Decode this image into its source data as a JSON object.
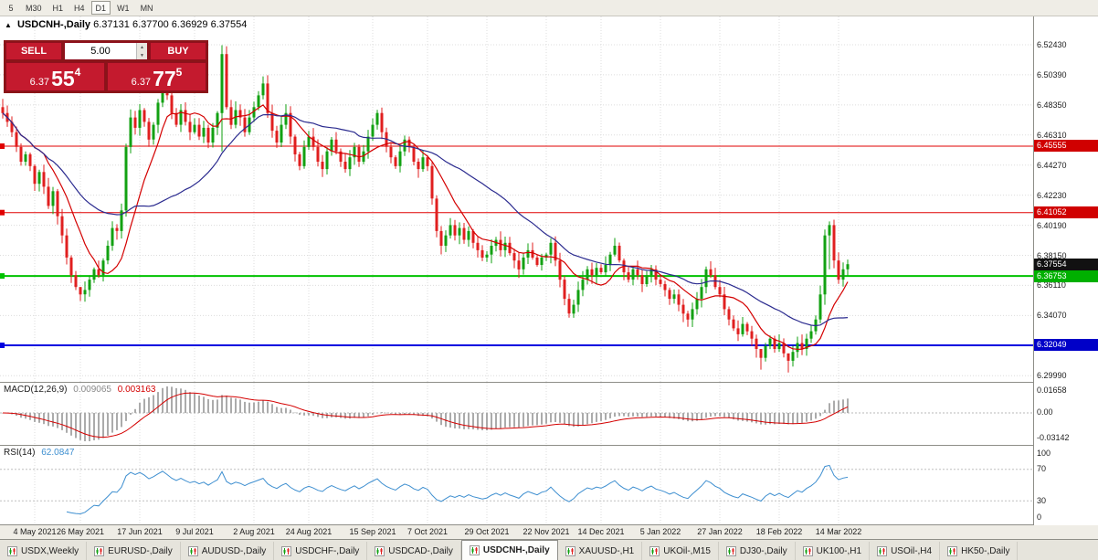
{
  "toolbar": {
    "timeframes": [
      "5",
      "M30",
      "H1",
      "H4",
      "D1",
      "W1",
      "MN"
    ],
    "active_timeframe": "D1"
  },
  "chart": {
    "symbol_label": "USDCNH-,Daily",
    "ohlc": {
      "open": "6.37131",
      "high": "6.37700",
      "low": "6.36929",
      "close": "6.37554"
    },
    "trade_panel": {
      "sell_label": "SELL",
      "buy_label": "BUY",
      "volume": "5.00",
      "sell_price": {
        "prefix": "6.37",
        "big": "55",
        "sup": "4"
      },
      "buy_price": {
        "prefix": "6.37",
        "big": "77",
        "sup": "5"
      }
    }
  },
  "macd": {
    "label": "MACD(12,26,9)",
    "v1": "0.009065",
    "v2": "0.003163",
    "axis": [
      "0.01658",
      "0.00",
      "-0.03142"
    ]
  },
  "rsi": {
    "label": "RSI(14)",
    "value": "62.0847",
    "axis": [
      "100",
      "70",
      "30",
      "0"
    ],
    "levels": [
      70,
      30
    ]
  },
  "tabs": [
    {
      "label": "USDX,Weekly",
      "active": false
    },
    {
      "label": "EURUSD-,Daily",
      "active": false
    },
    {
      "label": "AUDUSD-,Daily",
      "active": false
    },
    {
      "label": "USDCHF-,Daily",
      "active": false
    },
    {
      "label": "USDCAD-,Daily",
      "active": false
    },
    {
      "label": "USDCNH-,Daily",
      "active": true
    },
    {
      "label": "XAUUSD-,H1",
      "active": false
    },
    {
      "label": "UKOil-,M15",
      "active": false
    },
    {
      "label": "DJ30-,Daily",
      "active": false
    },
    {
      "label": "UK100-,H1",
      "active": false
    },
    {
      "label": "USOil-,H4",
      "active": false
    },
    {
      "label": "HK50-,Daily",
      "active": false
    }
  ],
  "chart_data": {
    "type": "candlestick",
    "title": "USDCNH-,Daily",
    "price_range": {
      "top": 6.5435,
      "bottom": 6.2957
    },
    "price_axis_labels": [
      "6.52430",
      "6.50390",
      "6.48350",
      "6.46310",
      "6.44270",
      "6.42230",
      "6.40190",
      "6.38150",
      "6.36110",
      "6.34070",
      "6.32030",
      "6.29990"
    ],
    "x_ticks": [
      {
        "i": 7,
        "label": "4 May 2021"
      },
      {
        "i": 17,
        "label": "26 May 2021"
      },
      {
        "i": 30,
        "label": "17 Jun 2021"
      },
      {
        "i": 42,
        "label": "9 Jul 2021"
      },
      {
        "i": 55,
        "label": "2 Aug 2021"
      },
      {
        "i": 67,
        "label": "24 Aug 2021"
      },
      {
        "i": 81,
        "label": "15 Sep 2021"
      },
      {
        "i": 93,
        "label": "7 Oct 2021"
      },
      {
        "i": 106,
        "label": "29 Oct 2021"
      },
      {
        "i": 119,
        "label": "22 Nov 2021"
      },
      {
        "i": 131,
        "label": "14 Dec 2021"
      },
      {
        "i": 144,
        "label": "5 Jan 2022"
      },
      {
        "i": 157,
        "label": "27 Jan 2022"
      },
      {
        "i": 170,
        "label": "18 Feb 2022"
      },
      {
        "i": 183,
        "label": "14 Mar 2022"
      }
    ],
    "first_open": 6.482,
    "closes": [
      6.478,
      6.472,
      6.465,
      6.455,
      6.445,
      6.45,
      6.442,
      6.43,
      6.438,
      6.428,
      6.415,
      6.425,
      6.408,
      6.395,
      6.38,
      6.368,
      6.36,
      6.355,
      6.358,
      6.365,
      6.372,
      6.368,
      6.378,
      6.388,
      6.4,
      6.398,
      6.412,
      6.455,
      6.475,
      6.468,
      6.48,
      6.472,
      6.46,
      6.47,
      6.485,
      6.5,
      6.49,
      6.478,
      6.47,
      6.48,
      6.472,
      6.465,
      6.47,
      6.462,
      6.468,
      6.458,
      6.468,
      6.478,
      6.518,
      6.482,
      6.47,
      6.48,
      6.475,
      6.465,
      6.475,
      6.482,
      6.49,
      6.498,
      6.478,
      6.466,
      6.458,
      6.47,
      6.478,
      6.462,
      6.45,
      6.442,
      6.455,
      6.462,
      6.455,
      6.445,
      6.44,
      6.452,
      6.46,
      6.452,
      6.445,
      6.44,
      6.448,
      6.455,
      6.445,
      6.452,
      6.462,
      6.47,
      6.478,
      6.465,
      6.455,
      6.448,
      6.442,
      6.452,
      6.46,
      6.455,
      6.445,
      6.44,
      6.448,
      6.442,
      6.42,
      6.398,
      6.388,
      6.395,
      6.402,
      6.395,
      6.4,
      6.392,
      6.398,
      6.39,
      6.385,
      6.38,
      6.382,
      6.388,
      6.392,
      6.385,
      6.39,
      6.383,
      6.378,
      6.372,
      6.38,
      6.385,
      6.38,
      6.375,
      6.38,
      6.382,
      6.39,
      6.378,
      6.365,
      6.352,
      6.342,
      6.348,
      6.358,
      6.365,
      6.372,
      6.368,
      6.373,
      6.37,
      6.375,
      6.382,
      6.388,
      6.378,
      6.37,
      6.365,
      6.372,
      6.368,
      6.362,
      6.368,
      6.372,
      6.365,
      6.362,
      6.358,
      6.352,
      6.355,
      6.348,
      6.342,
      6.338,
      6.345,
      6.352,
      6.36,
      6.372,
      6.368,
      6.36,
      6.355,
      6.345,
      6.338,
      6.332,
      6.328,
      6.335,
      6.33,
      6.325,
      6.318,
      6.312,
      6.32,
      6.325,
      6.318,
      6.322,
      6.315,
      6.31,
      6.316,
      6.322,
      6.318,
      6.325,
      6.33,
      6.338,
      6.355,
      6.395,
      6.402,
      6.378,
      6.365,
      6.372,
      6.3755
    ],
    "wick_overrides": {
      "17": [
        6.36,
        6.3505
      ],
      "35": [
        6.506,
        6.482
      ],
      "48": [
        6.524,
        6.452
      ],
      "166": [
        6.318,
        6.304
      ],
      "172": [
        6.314,
        6.302
      ],
      "180": [
        6.399,
        6.348
      ],
      "181": [
        6.4045,
        6.372
      ]
    },
    "levels": [
      {
        "price": 6.45555,
        "label": "6.45555",
        "color": "#E00000",
        "badge": "#D00000",
        "width": 1
      },
      {
        "price": 6.41052,
        "label": "6.41052",
        "color": "#E00000",
        "badge": "#D00000",
        "width": 1
      },
      {
        "price": 6.36753,
        "label": "6.36753",
        "color": "#00C200",
        "badge": "#00B000",
        "width": 2
      },
      {
        "price": 6.32049,
        "label": "6.32049",
        "color": "#0000E0",
        "badge": "#0000C8",
        "width": 2
      }
    ],
    "current_price": {
      "price": 6.37554,
      "label": "6.37554",
      "badge": "#111111"
    },
    "overlays": [
      {
        "name": "ma-fast",
        "type": "sma",
        "period": 10,
        "color": "#D40000"
      },
      {
        "name": "ma-slow",
        "type": "sma",
        "period": 30,
        "color": "#2B2B8F"
      }
    ],
    "indicators": [
      {
        "name": "MACD",
        "params": "12,26,9",
        "main": "0.009065",
        "signal": "0.003163",
        "axis": [
          "0.01658",
          "0.00",
          "-0.03142"
        ]
      },
      {
        "name": "RSI",
        "params": "14",
        "value": "62.0847",
        "levels": [
          70,
          30
        ],
        "axis": [
          "100",
          "70",
          "30",
          "0"
        ]
      }
    ],
    "colors": {
      "up": "#12A112",
      "down": "#E01F1F",
      "grid": "#DCDCDC",
      "macd_hist": "#ABABAB",
      "macd_signal": "#D40000",
      "rsi_line": "#3E8FD0"
    }
  }
}
